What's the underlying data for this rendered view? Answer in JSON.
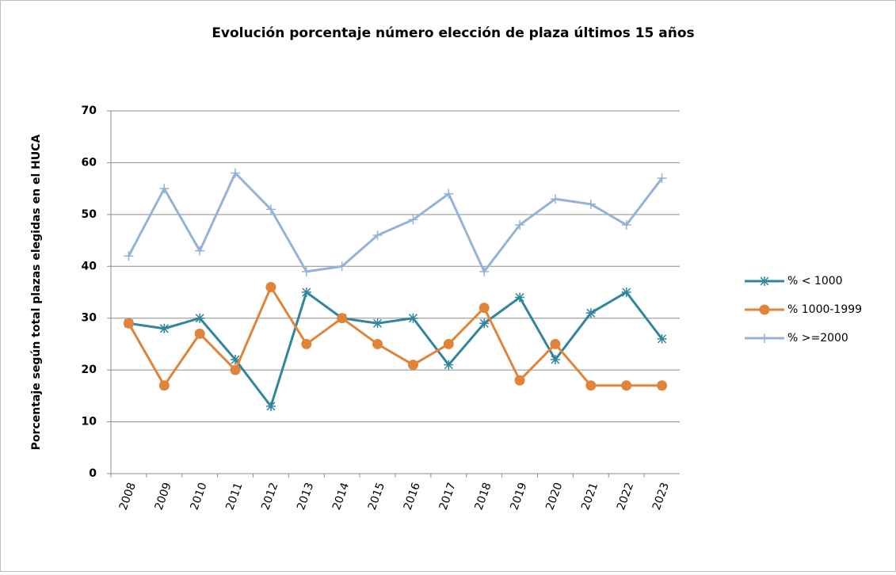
{
  "chart_data": {
    "type": "line",
    "title": "Evolución porcentaje número elección de plaza últimos 15 años",
    "y_label": "Porcentaje según total plazas elegidas en el HUCA",
    "categories": [
      "2008",
      "2009",
      "2010",
      "2011",
      "2012",
      "2013",
      "2014",
      "2015",
      "2016",
      "2017",
      "2018",
      "2019",
      "2020",
      "2021",
      "2022",
      "2023"
    ],
    "series": [
      {
        "name": "% < 1000",
        "color": "#31859c",
        "marker": "star",
        "values": [
          29,
          28,
          30,
          22,
          13,
          35,
          30,
          29,
          30,
          21,
          29,
          34,
          22,
          31,
          35,
          26
        ]
      },
      {
        "name": "% 1000-1999",
        "color": "#e0843a",
        "marker": "circle",
        "values": [
          29,
          17,
          27,
          20,
          36,
          25,
          30,
          25,
          21,
          25,
          32,
          18,
          25,
          17,
          17,
          17
        ]
      },
      {
        "name": "% >=2000",
        "color": "#95b3d7",
        "marker": "plus",
        "values": [
          42,
          55,
          43,
          58,
          51,
          39,
          40,
          46,
          49,
          54,
          39,
          48,
          53,
          52,
          48,
          57
        ]
      }
    ],
    "ylim": [
      0,
      70
    ],
    "yticks": [
      0,
      10,
      20,
      30,
      40,
      50,
      60,
      70
    ],
    "grid": true,
    "legend": "right"
  }
}
